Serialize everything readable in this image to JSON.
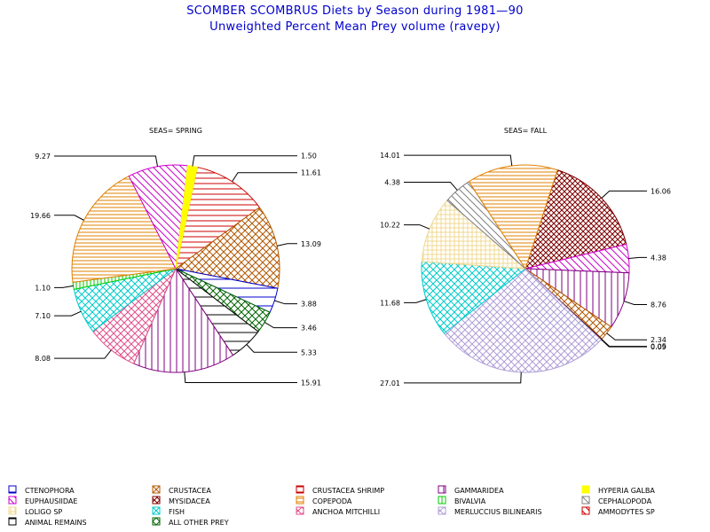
{
  "title": "SCOMBER SCOMBRUS Diets by Season during 1981—90",
  "subtitle": "Unweighted Percent Mean Prey volume (ravepy)",
  "chart_data": [
    {
      "type": "pie",
      "panel_label": "SEAS= SPRING",
      "slices": [
        {
          "category": "CRUSTACEA SHRIMP",
          "value": 11.61,
          "label": "11.61"
        },
        {
          "category": "CRUSTACEA",
          "value": 13.09,
          "label": "13.09"
        },
        {
          "category": "CTENOPHORA",
          "value": 3.88,
          "label": "3.88"
        },
        {
          "category": "ALL OTHER PREY",
          "value": 3.46,
          "label": "3.46"
        },
        {
          "category": "ANIMAL REMAINS",
          "value": 5.33,
          "label": "5.33"
        },
        {
          "category": "GAMMARIDEA",
          "value": 15.91,
          "label": "15.91"
        },
        {
          "category": "ANCHOA MITCHILLI",
          "value": 8.08,
          "label": "8.08"
        },
        {
          "category": "FISH",
          "value": 7.1,
          "label": "7.10"
        },
        {
          "category": "BIVALVIA",
          "value": 1.1,
          "label": "1.10"
        },
        {
          "category": "COPEPODA",
          "value": 19.66,
          "label": "19.66"
        },
        {
          "category": "EUPHAUSIIDAE",
          "value": 9.27,
          "label": "9.27"
        },
        {
          "category": "HYPERIA GALBA",
          "value": 1.5,
          "label": "1.50"
        }
      ]
    },
    {
      "type": "pie",
      "panel_label": "SEAS= FALL",
      "slices": [
        {
          "category": "MYSIDACEA",
          "value": 16.06,
          "label": "16.06"
        },
        {
          "category": "EUPHAUSIIDAE",
          "value": 4.38,
          "label": "4.38"
        },
        {
          "category": "GAMMARIDEA",
          "value": 8.76,
          "label": "8.76"
        },
        {
          "category": "CRUSTACEA",
          "value": 2.34,
          "label": "2.34"
        },
        {
          "category": "AMMODYTES SP",
          "value": 0.05,
          "label": "0.05"
        },
        {
          "category": "ANIMAL REMAINS",
          "value": 0.09,
          "label": "0.09"
        },
        {
          "category": "MERLUCCIUS BILINEARIS",
          "value": 27.01,
          "label": "27.01"
        },
        {
          "category": "FISH",
          "value": 11.68,
          "label": "11.68"
        },
        {
          "category": "LOLIGO SP",
          "value": 10.22,
          "label": "10.22"
        },
        {
          "category": "CEPHALOPODA",
          "value": 4.38,
          "label": "4.38"
        },
        {
          "category": "COPEPODA",
          "value": 14.01,
          "label": "14.01"
        }
      ]
    }
  ],
  "legend": [
    {
      "name": "CTENOPHORA",
      "color": "#0000cc",
      "pattern": "hline-sparse"
    },
    {
      "name": "CRUSTACEA",
      "color": "#b35900",
      "pattern": "crosshatch-diag"
    },
    {
      "name": "CRUSTACEA SHRIMP",
      "color": "#cc0000",
      "pattern": "hline"
    },
    {
      "name": "GAMMARIDEA",
      "color": "#800080",
      "pattern": "vline"
    },
    {
      "name": "HYPERIA GALBA",
      "color": "#ffff00",
      "pattern": "solid"
    },
    {
      "name": "EUPHAUSIIDAE",
      "color": "#cc00cc",
      "pattern": "diag-back"
    },
    {
      "name": "MYSIDACEA",
      "color": "#800000",
      "pattern": "crosshatch-diag-dense"
    },
    {
      "name": "COPEPODA",
      "color": "#e08000",
      "pattern": "hline-dense"
    },
    {
      "name": "BIVALVIA",
      "color": "#00cc00",
      "pattern": "vline-dense"
    },
    {
      "name": "CEPHALOPODA",
      "color": "#808080",
      "pattern": "diag-back"
    },
    {
      "name": "LOLIGO SP",
      "color": "#f0d890",
      "pattern": "grid"
    },
    {
      "name": "FISH",
      "color": "#00cccc",
      "pattern": "crosshatch-diag"
    },
    {
      "name": "ANCHOA MITCHILLI",
      "color": "#e0508a",
      "pattern": "crosshatch-diag"
    },
    {
      "name": "MERLUCCIUS BILINEARIS",
      "color": "#b0a0d8",
      "pattern": "crosshatch-diag"
    },
    {
      "name": "AMMODYTES SP",
      "color": "#cc0000",
      "pattern": "diag-back"
    },
    {
      "name": "ANIMAL REMAINS",
      "color": "#000000",
      "pattern": "hline-sparse"
    },
    {
      "name": "ALL OTHER PREY",
      "color": "#006600",
      "pattern": "crosshatch-diag"
    }
  ]
}
